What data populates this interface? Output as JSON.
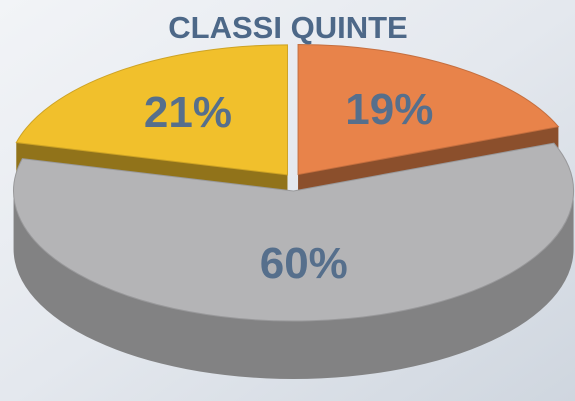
{
  "chart_data": {
    "type": "pie",
    "title": "CLASSI QUINTE",
    "categories": [
      null,
      null,
      null
    ],
    "values": [
      19,
      60,
      21
    ],
    "value_labels": [
      "19%",
      "60%",
      "21%"
    ],
    "colors": [
      "#e8834a",
      "#b4b4b6",
      "#f1c02c"
    ]
  }
}
